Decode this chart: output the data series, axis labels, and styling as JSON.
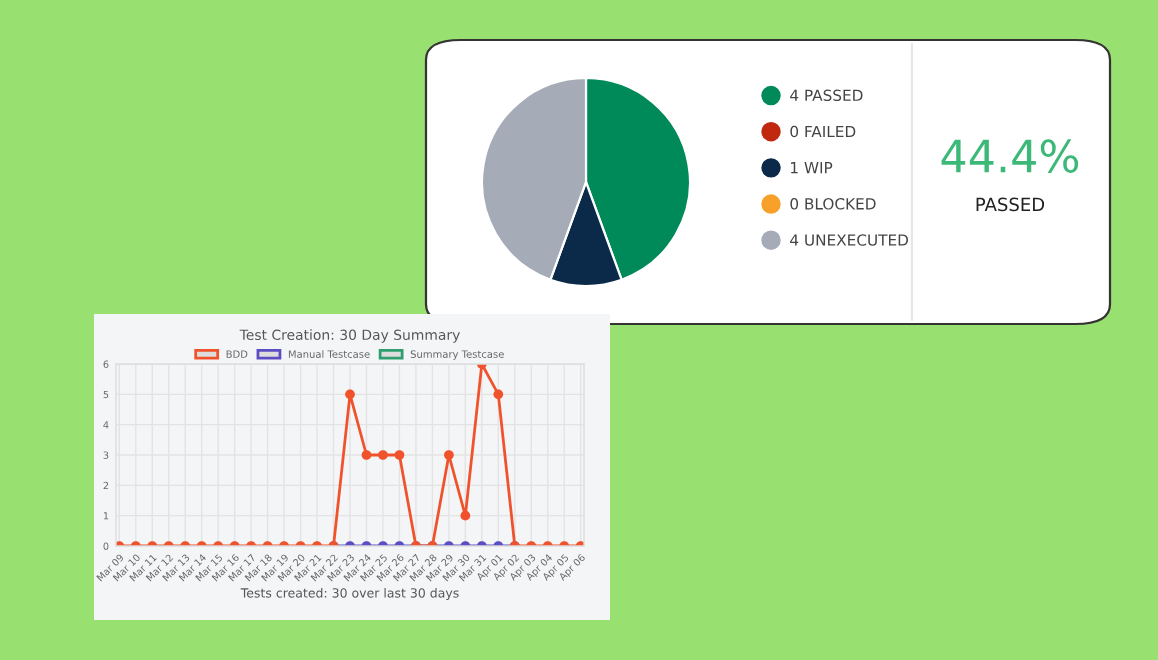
{
  "chart_data": [
    {
      "type": "pie",
      "categories": [
        "4 PASSED",
        "0 FAILED",
        "1 WIP",
        "0 BLOCKED",
        "4 UNEXECUTED"
      ],
      "values": [
        4,
        0,
        1,
        0,
        4
      ],
      "colors": [
        "#008a5a",
        "#c0280f",
        "#0b2a4a",
        "#f7a02a",
        "#a5abb7"
      ],
      "legend": "right",
      "annotations": [
        "44.4%",
        "PASSED"
      ]
    },
    {
      "type": "line",
      "title": "Test Creation: 30 Day Summary",
      "categories": [
        "Mar 09",
        "Mar 10",
        "Mar 11",
        "Mar 12",
        "Mar 13",
        "Mar 14",
        "Mar 15",
        "Mar 16",
        "Mar 17",
        "Mar 18",
        "Mar 19",
        "Mar 20",
        "Mar 21",
        "Mar 22",
        "Mar 23",
        "Mar 24",
        "Mar 25",
        "Mar 26",
        "Mar 27",
        "Mar 28",
        "Mar 29",
        "Mar 30",
        "Mar 31",
        "Apr 01",
        "Apr 02",
        "Apr 03",
        "Apr 04",
        "Apr 05",
        "Apr 06"
      ],
      "series": [
        {
          "name": "Summary Testcase",
          "color": "#2e9e6e",
          "values": [
            null,
            null,
            null,
            null,
            null,
            null,
            null,
            null,
            null,
            null,
            null,
            null,
            null,
            null,
            null,
            null,
            null,
            null,
            null,
            null,
            null,
            null,
            null,
            null,
            null,
            null,
            null,
            null,
            null
          ]
        },
        {
          "name": "Manual Testcase",
          "color": "#5b4ec4",
          "values": [
            null,
            null,
            null,
            null,
            null,
            null,
            null,
            null,
            null,
            null,
            null,
            null,
            null,
            0,
            0,
            0,
            0,
            0,
            0,
            0,
            0,
            0,
            0,
            0,
            0,
            null,
            null,
            null,
            null
          ]
        },
        {
          "name": "BDD",
          "color": "#f0532c",
          "values": [
            0,
            0,
            0,
            0,
            0,
            0,
            0,
            0,
            0,
            0,
            0,
            0,
            0,
            0,
            5,
            3,
            3,
            3,
            0,
            0,
            3,
            1,
            6,
            5,
            0,
            0,
            0,
            0,
            0
          ]
        }
      ],
      "ylim": [
        0,
        6
      ],
      "yticks": [
        0,
        1,
        2,
        3,
        4,
        5,
        6
      ],
      "grid": true,
      "legend": "top",
      "marker": "circle",
      "line_style": "solid",
      "annotations": [
        "Tests created: 30 over last 30 days"
      ]
    }
  ]
}
